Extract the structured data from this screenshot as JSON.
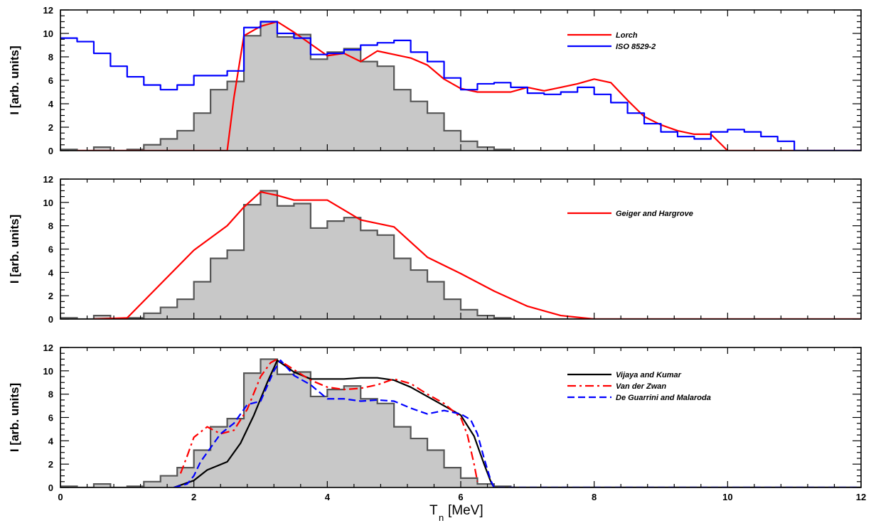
{
  "colors": {
    "frame": "#000000",
    "histogram_fill": "#c8c8c8",
    "histogram_line": "#555555",
    "red": "#ff0000",
    "blue": "#0000ff",
    "black": "#000000"
  },
  "chart_data": [
    {
      "type": "line",
      "panel": "top",
      "xlabel": "",
      "ylabel": "I [arb. units]",
      "xlim": [
        0,
        12
      ],
      "ylim": [
        0,
        12
      ],
      "xticks": [
        0,
        2,
        4,
        6,
        8,
        10,
        12
      ],
      "yticks": [
        0,
        2,
        4,
        6,
        8,
        10,
        12
      ],
      "show_x_tick_labels": false,
      "legend_position": "top-right",
      "histogram": {
        "name": "",
        "style": "filled-step",
        "bin_edges": [
          0,
          0.25,
          0.5,
          0.75,
          1.0,
          1.25,
          1.5,
          1.75,
          2.0,
          2.25,
          2.5,
          2.75,
          3.0,
          3.25,
          3.5,
          3.75,
          4.0,
          4.25,
          4.5,
          4.75,
          5.0,
          5.25,
          5.5,
          5.75,
          6.0,
          6.25,
          6.5,
          6.75,
          7.0,
          12.0
        ],
        "values": [
          0.1,
          0.0,
          0.3,
          0.0,
          0.1,
          0.5,
          1.0,
          1.7,
          3.2,
          5.2,
          5.9,
          9.8,
          11.0,
          9.7,
          9.9,
          7.8,
          8.4,
          8.7,
          7.6,
          7.2,
          5.2,
          4.2,
          3.2,
          1.7,
          0.8,
          0.3,
          0.1,
          0.0,
          0.0
        ]
      },
      "series": [
        {
          "name": "Lorch",
          "color": "#ff0000",
          "style": "solid",
          "x": [
            0.25,
            2.5,
            2.6,
            2.75,
            3.0,
            3.25,
            3.5,
            3.75,
            4.0,
            4.25,
            4.5,
            4.75,
            5.0,
            5.25,
            5.5,
            5.75,
            6.0,
            6.25,
            6.5,
            6.75,
            7.0,
            7.25,
            7.5,
            7.75,
            8.0,
            8.25,
            8.5,
            8.75,
            9.0,
            9.25,
            9.5,
            9.75,
            10.0,
            12.0
          ],
          "y": [
            0.0,
            0.0,
            4.5,
            9.8,
            10.6,
            11.0,
            10.1,
            9.1,
            8.1,
            8.3,
            7.6,
            8.5,
            8.2,
            7.9,
            7.3,
            6.1,
            5.3,
            5.0,
            5.0,
            5.0,
            5.4,
            5.1,
            5.4,
            5.7,
            6.1,
            5.8,
            4.3,
            2.9,
            2.2,
            1.7,
            1.4,
            1.4,
            0.0,
            0.0
          ]
        },
        {
          "name": "ISO 8529-2",
          "color": "#0000ff",
          "style": "step",
          "bin_edges": [
            0,
            0.25,
            0.5,
            0.75,
            1.0,
            1.25,
            1.5,
            1.75,
            2.0,
            2.25,
            2.5,
            2.75,
            3.0,
            3.25,
            3.5,
            3.75,
            4.0,
            4.25,
            4.5,
            4.75,
            5.0,
            5.25,
            5.5,
            5.75,
            6.0,
            6.25,
            6.5,
            6.75,
            7.0,
            7.25,
            7.5,
            7.75,
            8.0,
            8.25,
            8.5,
            8.75,
            9.0,
            9.25,
            9.5,
            9.75,
            10.0,
            10.25,
            10.5,
            10.75,
            11.0,
            12.0
          ],
          "values": [
            9.6,
            9.3,
            8.3,
            7.2,
            6.3,
            5.6,
            5.2,
            5.6,
            6.4,
            6.4,
            6.8,
            10.5,
            11.0,
            10.0,
            9.6,
            8.2,
            8.3,
            8.6,
            9.0,
            9.2,
            9.4,
            8.4,
            7.6,
            6.2,
            5.2,
            5.7,
            5.8,
            5.4,
            4.9,
            4.8,
            5.0,
            5.4,
            4.8,
            4.1,
            3.2,
            2.3,
            1.6,
            1.2,
            1.0,
            1.6,
            1.8,
            1.6,
            1.2,
            0.8,
            0.0
          ]
        }
      ]
    },
    {
      "type": "line",
      "panel": "middle",
      "xlabel": "",
      "ylabel": "I [arb. units]",
      "xlim": [
        0,
        12
      ],
      "ylim": [
        0,
        12
      ],
      "xticks": [
        0,
        2,
        4,
        6,
        8,
        10,
        12
      ],
      "yticks": [
        0,
        2,
        4,
        6,
        8,
        10,
        12
      ],
      "show_x_tick_labels": false,
      "legend_position": "top-right",
      "histogram": {
        "name": "",
        "style": "filled-step",
        "bin_edges": [
          0,
          0.25,
          0.5,
          0.75,
          1.0,
          1.25,
          1.5,
          1.75,
          2.0,
          2.25,
          2.5,
          2.75,
          3.0,
          3.25,
          3.5,
          3.75,
          4.0,
          4.25,
          4.5,
          4.75,
          5.0,
          5.25,
          5.5,
          5.75,
          6.0,
          6.25,
          6.5,
          6.75,
          7.0,
          12.0
        ],
        "values": [
          0.1,
          0.0,
          0.3,
          0.0,
          0.1,
          0.5,
          1.0,
          1.7,
          3.2,
          5.2,
          5.9,
          9.8,
          11.0,
          9.7,
          9.9,
          7.8,
          8.4,
          8.7,
          7.6,
          7.2,
          5.2,
          4.2,
          3.2,
          1.7,
          0.8,
          0.3,
          0.1,
          0.0,
          0.0
        ]
      },
      "series": [
        {
          "name": "Geiger and Hargrove",
          "color": "#ff0000",
          "style": "solid",
          "x": [
            0.5,
            1.0,
            1.5,
            2.0,
            2.5,
            2.75,
            3.0,
            3.25,
            3.5,
            4.0,
            4.5,
            5.0,
            5.5,
            6.0,
            6.5,
            7.0,
            7.5,
            8.0,
            12.0
          ],
          "y": [
            0.0,
            0.1,
            3.0,
            5.9,
            8.0,
            9.6,
            10.9,
            10.6,
            10.2,
            10.2,
            8.5,
            7.9,
            5.3,
            3.9,
            2.4,
            1.1,
            0.3,
            0.0,
            0.0
          ]
        }
      ]
    },
    {
      "type": "line",
      "panel": "bottom",
      "xlabel": "T_n [MeV]",
      "ylabel": "I [arb. units]",
      "xlim": [
        0,
        12
      ],
      "ylim": [
        0,
        12
      ],
      "xticks": [
        0,
        2,
        4,
        6,
        8,
        10,
        12
      ],
      "yticks": [
        0,
        2,
        4,
        6,
        8,
        10,
        12
      ],
      "show_x_tick_labels": true,
      "legend_position": "top-right",
      "histogram": {
        "name": "",
        "style": "filled-step",
        "bin_edges": [
          0,
          0.25,
          0.5,
          0.75,
          1.0,
          1.25,
          1.5,
          1.75,
          2.0,
          2.25,
          2.5,
          2.75,
          3.0,
          3.25,
          3.5,
          3.75,
          4.0,
          4.25,
          4.5,
          4.75,
          5.0,
          5.25,
          5.5,
          5.75,
          6.0,
          6.25,
          6.5,
          6.75,
          7.0,
          12.0
        ],
        "values": [
          0.1,
          0.0,
          0.3,
          0.0,
          0.1,
          0.5,
          1.0,
          1.7,
          3.2,
          5.2,
          5.9,
          9.8,
          11.0,
          9.7,
          9.9,
          7.8,
          8.4,
          8.7,
          7.6,
          7.2,
          5.2,
          4.2,
          3.2,
          1.7,
          0.8,
          0.3,
          0.1,
          0.0,
          0.0
        ]
      },
      "series": [
        {
          "name": "Vijaya and Kumar",
          "color": "#000000",
          "style": "solid",
          "x": [
            1.7,
            2.0,
            2.2,
            2.5,
            2.7,
            2.9,
            3.1,
            3.25,
            3.5,
            3.75,
            4.0,
            4.25,
            4.5,
            4.75,
            5.0,
            5.25,
            5.5,
            5.75,
            6.0,
            6.2,
            6.35,
            6.45,
            6.5,
            12.0
          ],
          "y": [
            0.0,
            0.6,
            1.5,
            2.2,
            3.8,
            6.2,
            9.0,
            10.9,
            9.9,
            9.3,
            9.3,
            9.3,
            9.4,
            9.4,
            9.2,
            8.6,
            7.8,
            7.0,
            6.2,
            4.4,
            2.0,
            0.5,
            0.0,
            0.0
          ]
        },
        {
          "name": "Van der Zwan",
          "color": "#ff0000",
          "style": "dash-dot",
          "x": [
            1.8,
            1.9,
            2.0,
            2.2,
            2.4,
            2.6,
            2.8,
            3.0,
            3.15,
            3.25,
            3.5,
            3.75,
            4.0,
            4.25,
            4.5,
            4.75,
            5.0,
            5.25,
            5.5,
            5.75,
            6.0,
            6.1,
            6.2,
            6.25
          ],
          "y": [
            1.2,
            2.7,
            4.3,
            5.2,
            4.6,
            4.9,
            6.7,
            9.5,
            10.7,
            11.0,
            10.1,
            9.2,
            8.6,
            8.4,
            8.5,
            8.8,
            9.3,
            8.9,
            8.0,
            7.2,
            6.0,
            4.5,
            2.0,
            0.5
          ]
        },
        {
          "name": "De Guarrini and Malaroda",
          "color": "#0000ff",
          "style": "dashed",
          "x": [
            1.7,
            1.9,
            2.0,
            2.1,
            2.2,
            2.4,
            2.6,
            2.8,
            3.0,
            3.2,
            3.3,
            3.5,
            3.75,
            4.0,
            4.25,
            4.5,
            4.75,
            5.0,
            5.25,
            5.5,
            5.75,
            6.0,
            6.15,
            6.25,
            6.35,
            6.45,
            6.5,
            12.0
          ],
          "y": [
            0.0,
            0.3,
            1.0,
            2.2,
            3.0,
            4.6,
            5.5,
            7.1,
            7.4,
            10.0,
            10.9,
            9.6,
            8.8,
            7.6,
            7.6,
            7.4,
            7.5,
            7.4,
            6.8,
            6.3,
            6.6,
            6.3,
            5.8,
            4.6,
            2.5,
            0.6,
            0.0,
            0.0
          ]
        }
      ]
    }
  ]
}
